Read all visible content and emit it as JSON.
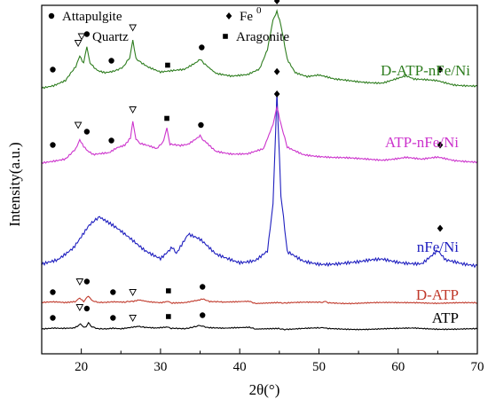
{
  "chart_data": {
    "type": "line",
    "xlabel": "2θ(°)",
    "ylabel": "Intensity(a.u.)",
    "xlim": [
      15,
      70
    ],
    "xticks": [
      "20",
      "30",
      "40",
      "50",
      "60",
      "70"
    ],
    "legend": {
      "placement": "top-left",
      "entries": [
        {
          "marker": "circle",
          "label": "Attapulgite"
        },
        {
          "marker": "diamond",
          "label": "Fe",
          "sup": "0"
        },
        {
          "marker": "triangle",
          "label": "Quartz"
        },
        {
          "marker": "square",
          "label": "Aragonite"
        }
      ]
    },
    "series": [
      {
        "name": "ATP",
        "color": "#000000",
        "points": [
          [
            15,
            0.04
          ],
          [
            16.5,
            0.06
          ],
          [
            17.5,
            0.04
          ],
          [
            19,
            0.05
          ],
          [
            19.5,
            0.12
          ],
          [
            19.9,
            0.22
          ],
          [
            20.3,
            0.1
          ],
          [
            20.6,
            0.14
          ],
          [
            20.9,
            0.26
          ],
          [
            21.2,
            0.12
          ],
          [
            22,
            0.06
          ],
          [
            23.3,
            0.05
          ],
          [
            24,
            0.08
          ],
          [
            25,
            0.05
          ],
          [
            26.5,
            0.1
          ],
          [
            27.2,
            0.14
          ],
          [
            28,
            0.08
          ],
          [
            29.5,
            0.05
          ],
          [
            30.9,
            0.1
          ],
          [
            31.2,
            0.04
          ],
          [
            33,
            0.06
          ],
          [
            34.6,
            0.12
          ],
          [
            35.2,
            0.17
          ],
          [
            36,
            0.09
          ],
          [
            38,
            0.05
          ],
          [
            41.2,
            0.08
          ],
          [
            42,
            0.03
          ],
          [
            44.9,
            0.04
          ],
          [
            46,
            0.03
          ],
          [
            50,
            0.06
          ],
          [
            50.6,
            0.09
          ],
          [
            51,
            0.04
          ],
          [
            55,
            0.03
          ],
          [
            60,
            0.04
          ],
          [
            62,
            0.06
          ],
          [
            65,
            0.04
          ],
          [
            70,
            0.03
          ]
        ],
        "markers": [
          {
            "type": "circle",
            "x": 16.4,
            "y": 0.45
          },
          {
            "type": "triangle",
            "x": 19.8,
            "y": 0.85
          },
          {
            "type": "circle",
            "x": 20.7,
            "y": 0.8
          },
          {
            "type": "circle",
            "x": 24,
            "y": 0.45
          },
          {
            "type": "triangle",
            "x": 26.5,
            "y": 0.45
          },
          {
            "type": "square",
            "x": 31,
            "y": 0.5
          },
          {
            "type": "circle",
            "x": 35.3,
            "y": 0.55
          }
        ]
      },
      {
        "name": "D-ATP",
        "color": "#c0392b",
        "points": [
          [
            15,
            0.05
          ],
          [
            16.5,
            0.07
          ],
          [
            18,
            0.05
          ],
          [
            19.2,
            0.08
          ],
          [
            19.8,
            0.24
          ],
          [
            20.3,
            0.12
          ],
          [
            20.9,
            0.28
          ],
          [
            21.3,
            0.15
          ],
          [
            22.2,
            0.08
          ],
          [
            24,
            0.09
          ],
          [
            25.5,
            0.06
          ],
          [
            26.6,
            0.12
          ],
          [
            27.3,
            0.16
          ],
          [
            28.5,
            0.08
          ],
          [
            30,
            0.06
          ],
          [
            31,
            0.12
          ],
          [
            31.3,
            0.05
          ],
          [
            33,
            0.07
          ],
          [
            34.8,
            0.13
          ],
          [
            35.3,
            0.18
          ],
          [
            36.2,
            0.1
          ],
          [
            38,
            0.06
          ],
          [
            41.2,
            0.1
          ],
          [
            42,
            0.04
          ],
          [
            44.9,
            0.07
          ],
          [
            46,
            0.04
          ],
          [
            50,
            0.07
          ],
          [
            50.6,
            0.1
          ],
          [
            51.2,
            0.04
          ],
          [
            55,
            0.04
          ],
          [
            60,
            0.05
          ],
          [
            62.5,
            0.07
          ],
          [
            65,
            0.04
          ],
          [
            70,
            0.04
          ]
        ],
        "markers": [
          {
            "type": "circle",
            "x": 16.4,
            "y": 0.45
          },
          {
            "type": "triangle",
            "x": 19.8,
            "y": 0.85
          },
          {
            "type": "circle",
            "x": 20.7,
            "y": 0.85
          },
          {
            "type": "circle",
            "x": 24,
            "y": 0.45
          },
          {
            "type": "triangle",
            "x": 26.5,
            "y": 0.45
          },
          {
            "type": "square",
            "x": 31,
            "y": 0.5
          },
          {
            "type": "circle",
            "x": 35.3,
            "y": 0.65
          }
        ]
      },
      {
        "name": "nFe/Ni",
        "color": "#1f1fbf",
        "points": [
          [
            15,
            0.05
          ],
          [
            17,
            0.12
          ],
          [
            19,
            0.28
          ],
          [
            21,
            0.55
          ],
          [
            22.3,
            0.62
          ],
          [
            24,
            0.52
          ],
          [
            26,
            0.38
          ],
          [
            28,
            0.24
          ],
          [
            30,
            0.15
          ],
          [
            31.5,
            0.28
          ],
          [
            32,
            0.2
          ],
          [
            33.5,
            0.42
          ],
          [
            35,
            0.35
          ],
          [
            37,
            0.18
          ],
          [
            40,
            0.1
          ],
          [
            42,
            0.12
          ],
          [
            43.5,
            0.22
          ],
          [
            44.2,
            0.8
          ],
          [
            44.7,
            2.15
          ],
          [
            45.2,
            0.9
          ],
          [
            46,
            0.2
          ],
          [
            48,
            0.1
          ],
          [
            50,
            0.08
          ],
          [
            55,
            0.08
          ],
          [
            58,
            0.12
          ],
          [
            60,
            0.1
          ],
          [
            63,
            0.08
          ],
          [
            65,
            0.22
          ],
          [
            66,
            0.1
          ],
          [
            68,
            0.06
          ],
          [
            70,
            0.05
          ]
        ],
        "markers": [
          {
            "type": "diamond",
            "x": 44.7,
            "y": 2.4
          },
          {
            "type": "diamond",
            "x": 65.3,
            "y": 0.5
          }
        ]
      },
      {
        "name": "ATP-nFe/Ni",
        "color": "#cc33cc",
        "points": [
          [
            15,
            0.05
          ],
          [
            16.5,
            0.1
          ],
          [
            18,
            0.15
          ],
          [
            19.3,
            0.35
          ],
          [
            19.8,
            0.55
          ],
          [
            20.3,
            0.4
          ],
          [
            20.8,
            0.3
          ],
          [
            21.5,
            0.22
          ],
          [
            23.5,
            0.26
          ],
          [
            24.5,
            0.38
          ],
          [
            25.5,
            0.45
          ],
          [
            26.2,
            0.6
          ],
          [
            26.5,
            0.98
          ],
          [
            26.9,
            0.55
          ],
          [
            27.5,
            0.5
          ],
          [
            28.5,
            0.45
          ],
          [
            29.5,
            0.38
          ],
          [
            30.4,
            0.55
          ],
          [
            30.8,
            0.82
          ],
          [
            31.2,
            0.48
          ],
          [
            32.5,
            0.42
          ],
          [
            33.5,
            0.45
          ],
          [
            34.5,
            0.58
          ],
          [
            35,
            0.65
          ],
          [
            35.6,
            0.55
          ],
          [
            37,
            0.32
          ],
          [
            39,
            0.26
          ],
          [
            41,
            0.25
          ],
          [
            43,
            0.35
          ],
          [
            44.2,
            0.9
          ],
          [
            44.7,
            1.3
          ],
          [
            45.2,
            0.9
          ],
          [
            46,
            0.4
          ],
          [
            48,
            0.25
          ],
          [
            50,
            0.2
          ],
          [
            52,
            0.16
          ],
          [
            55,
            0.13
          ],
          [
            58,
            0.12
          ],
          [
            61,
            0.18
          ],
          [
            63,
            0.12
          ],
          [
            65,
            0.16
          ],
          [
            67,
            0.1
          ],
          [
            70,
            0.08
          ]
        ],
        "markers": [
          {
            "type": "circle",
            "x": 16.4,
            "y": 0.45
          },
          {
            "type": "triangle",
            "x": 19.6,
            "y": 0.9
          },
          {
            "type": "circle",
            "x": 20.7,
            "y": 0.75
          },
          {
            "type": "circle",
            "x": 23.8,
            "y": 0.55
          },
          {
            "type": "triangle",
            "x": 26.5,
            "y": 1.25
          },
          {
            "type": "square",
            "x": 30.8,
            "y": 1.05
          },
          {
            "type": "circle",
            "x": 35.1,
            "y": 0.9
          },
          {
            "type": "diamond",
            "x": 44.7,
            "y": 1.6
          },
          {
            "type": "diamond",
            "x": 65.3,
            "y": 0.45
          }
        ]
      },
      {
        "name": "D-ATP-nFe/Ni",
        "color": "#2e7d1f",
        "points": [
          [
            15,
            0.05
          ],
          [
            16.5,
            0.1
          ],
          [
            18,
            0.2
          ],
          [
            19.3,
            0.5
          ],
          [
            19.8,
            0.75
          ],
          [
            20.3,
            0.58
          ],
          [
            20.7,
            0.95
          ],
          [
            21.1,
            0.62
          ],
          [
            22,
            0.42
          ],
          [
            23,
            0.38
          ],
          [
            24,
            0.42
          ],
          [
            25.3,
            0.52
          ],
          [
            26.1,
            0.7
          ],
          [
            26.5,
            1.15
          ],
          [
            26.9,
            0.72
          ],
          [
            27.5,
            0.62
          ],
          [
            28.5,
            0.5
          ],
          [
            30,
            0.38
          ],
          [
            31,
            0.4
          ],
          [
            33,
            0.45
          ],
          [
            34.5,
            0.62
          ],
          [
            35,
            0.7
          ],
          [
            35.8,
            0.55
          ],
          [
            37,
            0.38
          ],
          [
            39,
            0.3
          ],
          [
            41,
            0.32
          ],
          [
            42.5,
            0.45
          ],
          [
            43.5,
            0.9
          ],
          [
            44.2,
            1.55
          ],
          [
            44.7,
            1.75
          ],
          [
            45.2,
            1.45
          ],
          [
            46,
            0.7
          ],
          [
            47,
            0.4
          ],
          [
            48.5,
            0.3
          ],
          [
            50,
            0.32
          ],
          [
            52,
            0.22
          ],
          [
            55,
            0.18
          ],
          [
            58,
            0.16
          ],
          [
            61,
            0.3
          ],
          [
            62,
            0.22
          ],
          [
            65,
            0.2
          ],
          [
            67,
            0.12
          ],
          [
            70,
            0.08
          ]
        ],
        "markers": [
          {
            "type": "circle",
            "x": 16.4,
            "y": 0.45
          },
          {
            "type": "triangle",
            "x": 19.6,
            "y": 1.05
          },
          {
            "type": "circle",
            "x": 20.7,
            "y": 1.25
          },
          {
            "type": "circle",
            "x": 23.8,
            "y": 0.65
          },
          {
            "type": "triangle",
            "x": 26.5,
            "y": 1.4
          },
          {
            "type": "square",
            "x": 30.9,
            "y": 0.55
          },
          {
            "type": "circle",
            "x": 35.2,
            "y": 0.95
          },
          {
            "type": "diamond",
            "x": 44.7,
            "y": 2.0
          },
          {
            "type": "diamond",
            "x": 65.3,
            "y": 0.45
          }
        ]
      }
    ]
  }
}
